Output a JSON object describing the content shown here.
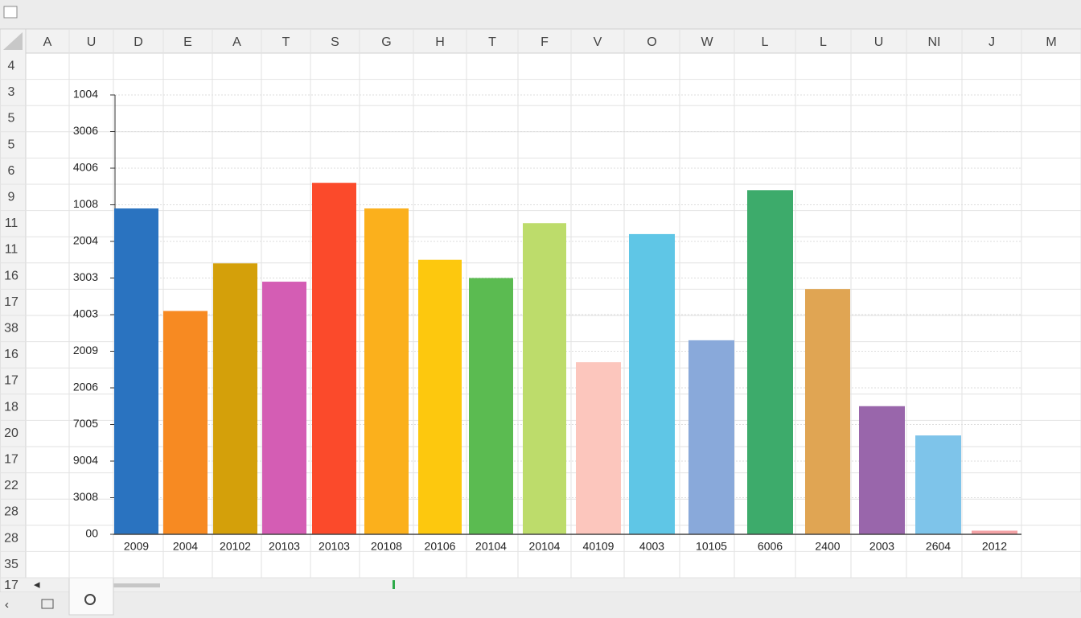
{
  "column_headers": [
    "A",
    "U",
    "D",
    "E",
    "A",
    "T",
    "S",
    "G",
    "H",
    "T",
    "F",
    "V",
    "O",
    "W",
    "L",
    "L",
    "U",
    "NI",
    "J",
    "M"
  ],
  "row_headers": [
    "4",
    "3",
    "5",
    "5",
    "6",
    "9",
    "11",
    "11",
    "16",
    "17",
    "38",
    "16",
    "17",
    "18",
    "20",
    "17",
    "22",
    "28",
    "28",
    "35",
    "17"
  ],
  "chart_data": {
    "type": "bar",
    "categories": [
      "2009",
      "2004",
      "20102",
      "20103",
      "20103",
      "20108",
      "20106",
      "20104",
      "20104",
      "40109",
      "4003",
      "10105",
      "6006",
      "2400",
      "2003",
      "2604",
      "2012"
    ],
    "values": [
      8.9,
      6.1,
      7.4,
      6.9,
      9.6,
      8.9,
      7.5,
      7.0,
      8.5,
      4.7,
      8.2,
      5.3,
      9.4,
      6.7,
      3.5,
      2.7,
      0.1
    ],
    "colors": [
      "#2a73c0",
      "#f78a22",
      "#d4a00a",
      "#d45db4",
      "#fb4a2b",
      "#fbb01c",
      "#fdc80e",
      "#5bbb51",
      "#bddc6b",
      "#fcc6bd",
      "#5fc6e6",
      "#89a9da",
      "#3dab6b",
      "#e0a553",
      "#9966ab",
      "#7ec4ea",
      "#f4a3a6"
    ],
    "ylim": [
      0,
      12
    ],
    "yticks": [
      {
        "value": 0,
        "label": "00"
      },
      {
        "value": 1,
        "label": "3008"
      },
      {
        "value": 2,
        "label": "9004"
      },
      {
        "value": 3,
        "label": "7005"
      },
      {
        "value": 4,
        "label": "2006"
      },
      {
        "value": 5,
        "label": "2009"
      },
      {
        "value": 6,
        "label": "4003"
      },
      {
        "value": 7,
        "label": "3003"
      },
      {
        "value": 8,
        "label": "2004"
      },
      {
        "value": 9,
        "label": "1008"
      },
      {
        "value": 10,
        "label": "4006"
      },
      {
        "value": 11,
        "label": "3006"
      },
      {
        "value": 12,
        "label": "1004"
      }
    ],
    "grid": true
  }
}
